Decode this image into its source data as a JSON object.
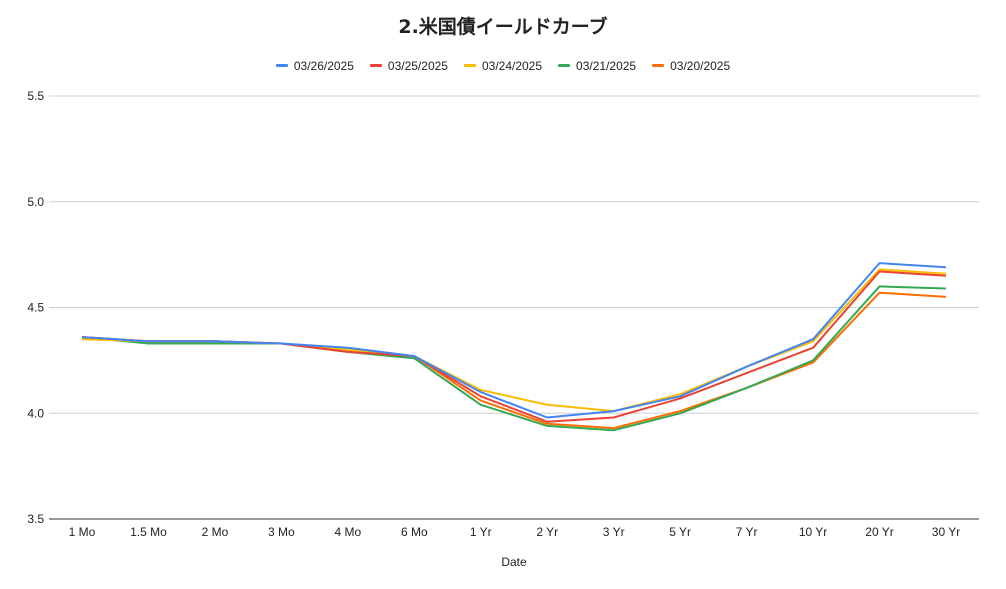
{
  "chart_data": {
    "type": "line",
    "title": "2.米国債イールドカーブ",
    "xlabel": "Date",
    "ylabel": "",
    "ylim": [
      3.5,
      5.5
    ],
    "yticks": [
      "3.5",
      "4.0",
      "4.5",
      "5.0",
      "5.5"
    ],
    "grid": true,
    "legend_position": "top",
    "categories": [
      "1 Mo",
      "1.5 Mo",
      "2 Mo",
      "3 Mo",
      "4 Mo",
      "6 Mo",
      "1 Yr",
      "2 Yr",
      "3 Yr",
      "5 Yr",
      "7 Yr",
      "10 Yr",
      "20 Yr",
      "30 Yr"
    ],
    "series": [
      {
        "name": "03/26/2025",
        "color": "#4285f4",
        "values": [
          4.36,
          4.34,
          4.34,
          4.33,
          4.31,
          4.27,
          4.1,
          3.98,
          4.01,
          4.08,
          4.22,
          4.35,
          4.71,
          4.69
        ]
      },
      {
        "name": "03/25/2025",
        "color": "#ea4335",
        "values": [
          4.36,
          4.34,
          4.34,
          4.33,
          4.29,
          4.27,
          4.08,
          3.96,
          3.98,
          4.07,
          4.19,
          4.31,
          4.67,
          4.65
        ]
      },
      {
        "name": "03/24/2025",
        "color": "#fbbc04",
        "values": [
          4.35,
          4.34,
          4.34,
          4.33,
          4.3,
          4.27,
          4.11,
          4.04,
          4.01,
          4.09,
          4.22,
          4.34,
          4.68,
          4.66
        ]
      },
      {
        "name": "03/21/2025",
        "color": "#34a853",
        "values": [
          4.36,
          4.33,
          4.33,
          4.33,
          4.29,
          4.26,
          4.04,
          3.94,
          3.92,
          4.0,
          4.12,
          4.25,
          4.6,
          4.59
        ]
      },
      {
        "name": "03/20/2025",
        "color": "#ff6d01",
        "values": [
          4.36,
          4.34,
          4.34,
          4.33,
          4.29,
          4.27,
          4.06,
          3.95,
          3.93,
          4.01,
          4.12,
          4.24,
          4.57,
          4.55
        ]
      }
    ]
  }
}
